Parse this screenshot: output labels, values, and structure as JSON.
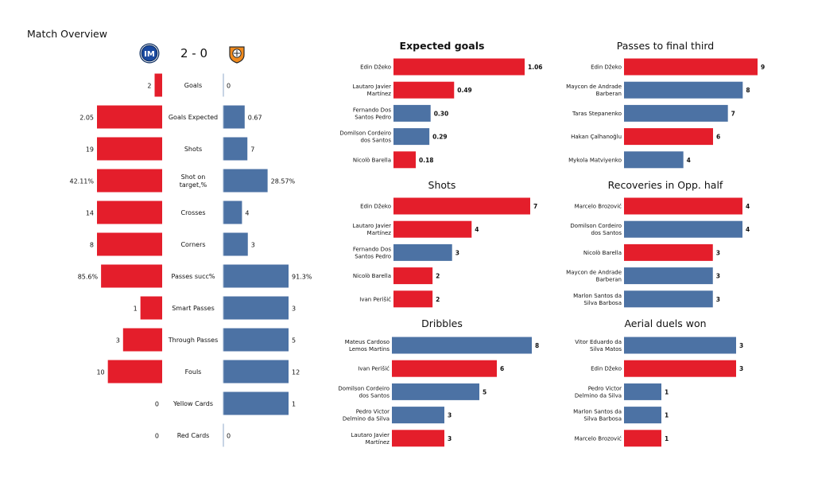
{
  "page_title": "Match Overview",
  "match": {
    "score": "2 - 0"
  },
  "colors": {
    "home": "#e41e2b",
    "away": "#4c72a4"
  },
  "icons": {
    "home_logo": "inter-crest-icon",
    "away_logo": "shakhtar-crest-icon"
  },
  "chart_data": [
    {
      "type": "bar",
      "orientation": "diverging",
      "title": "",
      "categories": [
        "Goals",
        "Goals Expected",
        "Shots",
        "Shot on target,%",
        "Crosses",
        "Corners",
        "Passes succ%",
        "Smart Passes",
        "Through Passes",
        "Fouls",
        "Yellow Cards",
        "Red Cards"
      ],
      "series": [
        {
          "values": [
            2,
            2.05,
            19,
            42.11,
            14,
            8,
            85.6,
            1,
            3,
            10,
            0,
            0
          ],
          "labels": [
            "2",
            "2.05",
            "19",
            "42.11%",
            "14",
            "8",
            "85.6%",
            "1",
            "3",
            "10",
            "0",
            "0"
          ],
          "color": "#e41e2b"
        },
        {
          "values": [
            0,
            0.67,
            7,
            28.57,
            4,
            3,
            91.3,
            3,
            5,
            12,
            1,
            0
          ],
          "labels": [
            "0",
            "0.67",
            "7",
            "28.57%",
            "4",
            "3",
            "91.3%",
            "3",
            "5",
            "12",
            "1",
            "0"
          ],
          "color": "#4c72a4"
        }
      ]
    },
    {
      "type": "bar",
      "orientation": "horizontal",
      "title": "Expected goals",
      "categories": [
        "Edin Džeko",
        "Lautaro Javier Martínez",
        "Fernando Dos Santos Pedro",
        "Domilson Cordeiro dos Santos",
        "Nicolò Barella"
      ],
      "values": [
        1.06,
        0.49,
        0.3,
        0.29,
        0.18
      ],
      "labels": [
        "1.06",
        "0.49",
        "0.30",
        "0.29",
        "0.18"
      ],
      "colors": [
        "#e41e2b",
        "#e41e2b",
        "#4c72a4",
        "#4c72a4",
        "#e41e2b"
      ]
    },
    {
      "type": "bar",
      "orientation": "horizontal",
      "title": "Passes to final third",
      "categories": [
        "Edin Džeko",
        "Maycon de Andrade Barberan",
        "Taras Stepanenko",
        "Hakan Çalhanoğlu",
        "Mykola Matviyenko"
      ],
      "values": [
        9,
        8,
        7,
        6,
        4
      ],
      "labels": [
        "9",
        "8",
        "7",
        "6",
        "4"
      ],
      "colors": [
        "#e41e2b",
        "#4c72a4",
        "#4c72a4",
        "#e41e2b",
        "#4c72a4"
      ]
    },
    {
      "type": "bar",
      "orientation": "horizontal",
      "title": "Shots",
      "categories": [
        "Edin Džeko",
        "Lautaro Javier Martínez",
        "Fernando Dos Santos Pedro",
        "Nicolò Barella",
        "Ivan Perišić"
      ],
      "values": [
        7,
        4,
        3,
        2,
        2
      ],
      "labels": [
        "7",
        "4",
        "3",
        "2",
        "2"
      ],
      "colors": [
        "#e41e2b",
        "#e41e2b",
        "#4c72a4",
        "#e41e2b",
        "#e41e2b"
      ]
    },
    {
      "type": "bar",
      "orientation": "horizontal",
      "title": "Recoveries in Opp. half",
      "categories": [
        "Marcelo Brozović",
        "Domilson Cordeiro dos Santos",
        "Nicolò Barella",
        "Maycon de Andrade Barberan",
        "Marlon Santos da Silva Barbosa"
      ],
      "values": [
        4,
        4,
        3,
        3,
        3
      ],
      "labels": [
        "4",
        "4",
        "3",
        "3",
        "3"
      ],
      "colors": [
        "#e41e2b",
        "#4c72a4",
        "#e41e2b",
        "#4c72a4",
        "#4c72a4"
      ]
    },
    {
      "type": "bar",
      "orientation": "horizontal",
      "title": "Dribbles",
      "categories": [
        "Mateus Cardoso Lemos Martins",
        "Ivan Perišić",
        "Domilson Cordeiro dos Santos",
        "Pedro Victor Delmino da Silva",
        "Lautaro Javier Martínez"
      ],
      "values": [
        8,
        6,
        5,
        3,
        3
      ],
      "labels": [
        "8",
        "6",
        "5",
        "3",
        "3"
      ],
      "colors": [
        "#4c72a4",
        "#e41e2b",
        "#4c72a4",
        "#4c72a4",
        "#e41e2b"
      ]
    },
    {
      "type": "bar",
      "orientation": "horizontal",
      "title": "Aerial duels won",
      "categories": [
        "Vitor Eduardo da Silva Matos",
        "Edin Džeko",
        "Pedro Victor Delmino da Silva",
        "Marlon Santos da Silva Barbosa",
        "Marcelo Brozović"
      ],
      "values": [
        3,
        3,
        1,
        1,
        1
      ],
      "labels": [
        "3",
        "3",
        "1",
        "1",
        "1"
      ],
      "colors": [
        "#4c72a4",
        "#e41e2b",
        "#4c72a4",
        "#4c72a4",
        "#e41e2b"
      ]
    }
  ]
}
